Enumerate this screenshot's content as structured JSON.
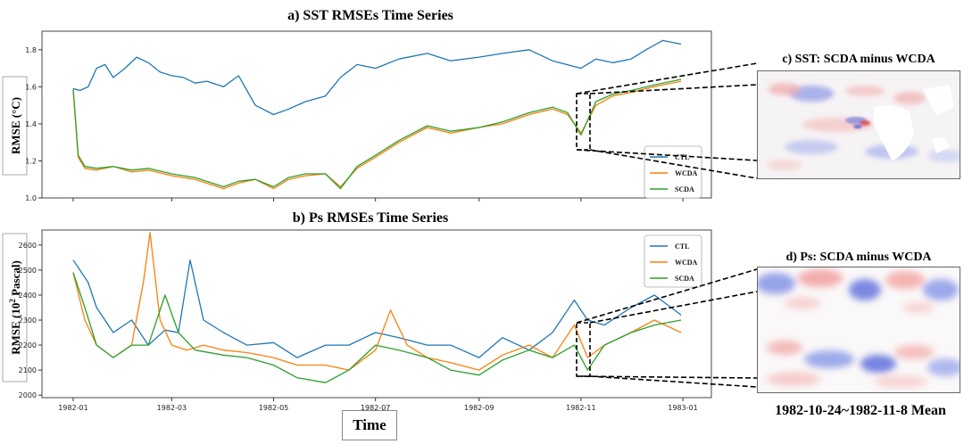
{
  "chart_data": [
    {
      "type": "line",
      "title": "a) SST RMSEs Time Series",
      "ylabel": "RMSE (°C)",
      "ylim": [
        1.0,
        1.9
      ],
      "yticks": [
        1.0,
        1.2,
        1.4,
        1.6,
        1.8
      ],
      "grid": false,
      "legend": "bottom-right",
      "series": [
        {
          "name": "CTL",
          "color": "#1f77b4",
          "x": [
            "1982-01-01",
            "1982-01-05",
            "1982-01-10",
            "1982-01-15",
            "1982-01-20",
            "1982-01-25",
            "1982-02-01",
            "1982-02-08",
            "1982-02-15",
            "1982-02-22",
            "1982-03-01",
            "1982-03-08",
            "1982-03-15",
            "1982-03-22",
            "1982-04-01",
            "1982-04-10",
            "1982-04-20",
            "1982-05-01",
            "1982-05-10",
            "1982-05-20",
            "1982-06-01",
            "1982-06-10",
            "1982-06-20",
            "1982-07-01",
            "1982-07-15",
            "1982-08-01",
            "1982-08-15",
            "1982-09-01",
            "1982-09-15",
            "1982-10-01",
            "1982-10-15",
            "1982-11-01",
            "1982-11-10",
            "1982-11-20",
            "1982-12-01",
            "1982-12-10",
            "1982-12-20",
            "1982-12-31"
          ],
          "values": [
            1.59,
            1.58,
            1.6,
            1.7,
            1.72,
            1.65,
            1.7,
            1.76,
            1.73,
            1.68,
            1.66,
            1.65,
            1.62,
            1.63,
            1.6,
            1.66,
            1.5,
            1.45,
            1.48,
            1.52,
            1.55,
            1.65,
            1.72,
            1.7,
            1.75,
            1.78,
            1.74,
            1.76,
            1.78,
            1.8,
            1.74,
            1.7,
            1.75,
            1.73,
            1.75,
            1.8,
            1.85,
            1.83
          ]
        },
        {
          "name": "WCDA",
          "color": "#ff7f0e",
          "x": [
            "1982-01-01",
            "1982-01-04",
            "1982-01-08",
            "1982-01-15",
            "1982-01-25",
            "1982-02-05",
            "1982-02-15",
            "1982-03-01",
            "1982-03-15",
            "1982-04-01",
            "1982-04-10",
            "1982-04-20",
            "1982-05-01",
            "1982-05-10",
            "1982-05-20",
            "1982-06-01",
            "1982-06-10",
            "1982-06-20",
            "1982-07-01",
            "1982-07-15",
            "1982-08-01",
            "1982-08-15",
            "1982-09-01",
            "1982-09-15",
            "1982-10-01",
            "1982-10-15",
            "1982-10-24",
            "1982-11-01",
            "1982-11-10",
            "1982-11-20",
            "1982-12-01",
            "1982-12-15",
            "1982-12-31"
          ],
          "values": [
            1.58,
            1.22,
            1.16,
            1.15,
            1.17,
            1.14,
            1.15,
            1.12,
            1.1,
            1.05,
            1.08,
            1.1,
            1.05,
            1.1,
            1.12,
            1.13,
            1.06,
            1.16,
            1.22,
            1.3,
            1.38,
            1.35,
            1.38,
            1.4,
            1.45,
            1.48,
            1.45,
            1.35,
            1.5,
            1.55,
            1.57,
            1.6,
            1.63
          ]
        },
        {
          "name": "SCDA",
          "color": "#2ca02c",
          "x": [
            "1982-01-01",
            "1982-01-04",
            "1982-01-08",
            "1982-01-15",
            "1982-01-25",
            "1982-02-05",
            "1982-02-15",
            "1982-03-01",
            "1982-03-15",
            "1982-04-01",
            "1982-04-10",
            "1982-04-20",
            "1982-05-01",
            "1982-05-10",
            "1982-05-20",
            "1982-06-01",
            "1982-06-10",
            "1982-06-20",
            "1982-07-01",
            "1982-07-15",
            "1982-08-01",
            "1982-08-15",
            "1982-09-01",
            "1982-09-15",
            "1982-10-01",
            "1982-10-15",
            "1982-10-24",
            "1982-11-01",
            "1982-11-10",
            "1982-11-20",
            "1982-12-01",
            "1982-12-15",
            "1982-12-31"
          ],
          "values": [
            1.59,
            1.23,
            1.17,
            1.16,
            1.17,
            1.15,
            1.16,
            1.13,
            1.11,
            1.06,
            1.09,
            1.1,
            1.06,
            1.11,
            1.13,
            1.13,
            1.05,
            1.17,
            1.23,
            1.31,
            1.39,
            1.36,
            1.38,
            1.41,
            1.46,
            1.49,
            1.46,
            1.34,
            1.52,
            1.56,
            1.58,
            1.61,
            1.64
          ]
        }
      ]
    },
    {
      "type": "line",
      "title": "b) Ps RMSEs Time Series",
      "ylabel": "RMSE (10² Pascal)",
      "ylabel_parts": [
        "RMSE (10",
        "2",
        " Pascal)"
      ],
      "xlabel": "Time",
      "ylim": [
        1990,
        2660
      ],
      "yticks": [
        2000,
        2100,
        2200,
        2300,
        2400,
        2500,
        2600
      ],
      "xticks": [
        "1982-01",
        "1982-03",
        "1982-05",
        "1982-07",
        "1982-09",
        "1982-11",
        "1983-01"
      ],
      "grid": false,
      "legend": "top-right",
      "series": [
        {
          "name": "CTL",
          "color": "#1f77b4",
          "x": [
            "1982-01-01",
            "1982-01-05",
            "1982-01-10",
            "1982-01-15",
            "1982-01-25",
            "1982-02-05",
            "1982-02-15",
            "1982-02-25",
            "1982-03-05",
            "1982-03-12",
            "1982-03-20",
            "1982-04-01",
            "1982-04-15",
            "1982-05-01",
            "1982-05-15",
            "1982-06-01",
            "1982-06-15",
            "1982-07-01",
            "1982-07-15",
            "1982-08-01",
            "1982-08-15",
            "1982-09-01",
            "1982-09-15",
            "1982-10-01",
            "1982-10-15",
            "1982-10-28",
            "1982-11-05",
            "1982-11-15",
            "1982-12-01",
            "1982-12-15",
            "1982-12-31"
          ],
          "values": [
            2540,
            2500,
            2450,
            2350,
            2250,
            2300,
            2200,
            2260,
            2250,
            2540,
            2300,
            2250,
            2200,
            2210,
            2150,
            2200,
            2200,
            2250,
            2230,
            2200,
            2200,
            2150,
            2230,
            2180,
            2250,
            2380,
            2300,
            2280,
            2350,
            2400,
            2320
          ]
        },
        {
          "name": "WCDA",
          "color": "#ff7f0e",
          "x": [
            "1982-01-01",
            "1982-01-08",
            "1982-01-15",
            "1982-01-25",
            "1982-02-05",
            "1982-02-12",
            "1982-02-16",
            "1982-02-22",
            "1982-03-01",
            "1982-03-10",
            "1982-03-20",
            "1982-04-01",
            "1982-04-15",
            "1982-05-01",
            "1982-05-15",
            "1982-06-01",
            "1982-06-15",
            "1982-07-01",
            "1982-07-10",
            "1982-07-20",
            "1982-08-01",
            "1982-08-15",
            "1982-09-01",
            "1982-09-15",
            "1982-10-01",
            "1982-10-15",
            "1982-10-28",
            "1982-11-05",
            "1982-11-15",
            "1982-12-01",
            "1982-12-15",
            "1982-12-31"
          ],
          "values": [
            2490,
            2300,
            2200,
            2150,
            2200,
            2450,
            2650,
            2300,
            2200,
            2180,
            2200,
            2180,
            2170,
            2150,
            2120,
            2120,
            2100,
            2180,
            2340,
            2200,
            2150,
            2130,
            2100,
            2160,
            2200,
            2150,
            2280,
            2150,
            2200,
            2250,
            2300,
            2250
          ]
        },
        {
          "name": "SCDA",
          "color": "#2ca02c",
          "x": [
            "1982-01-01",
            "1982-01-08",
            "1982-01-15",
            "1982-01-25",
            "1982-02-05",
            "1982-02-15",
            "1982-02-25",
            "1982-03-05",
            "1982-03-15",
            "1982-04-01",
            "1982-04-15",
            "1982-05-01",
            "1982-05-15",
            "1982-06-01",
            "1982-06-15",
            "1982-07-01",
            "1982-07-15",
            "1982-08-01",
            "1982-08-15",
            "1982-09-01",
            "1982-09-15",
            "1982-10-01",
            "1982-10-15",
            "1982-10-28",
            "1982-11-05",
            "1982-11-15",
            "1982-12-01",
            "1982-12-15",
            "1982-12-31"
          ],
          "values": [
            2490,
            2350,
            2200,
            2150,
            2200,
            2200,
            2400,
            2250,
            2180,
            2160,
            2150,
            2120,
            2070,
            2050,
            2100,
            2200,
            2180,
            2150,
            2100,
            2080,
            2140,
            2180,
            2150,
            2200,
            2100,
            2200,
            2250,
            2280,
            2300
          ]
        }
      ]
    }
  ],
  "maps": {
    "sst_title": "c) SST: SCDA minus WCDA",
    "ps_title": "d) Ps: SCDA minus WCDA",
    "caption": "1982-10-24~1982-11-8 Mean"
  }
}
